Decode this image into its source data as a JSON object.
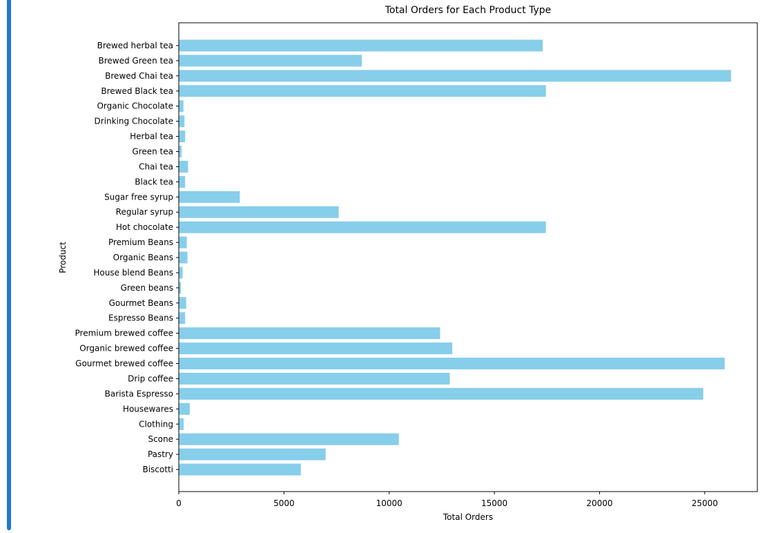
{
  "accent_color": "#1f77d4",
  "chart_data": {
    "type": "bar",
    "orientation": "horizontal",
    "title": "Total Orders for Each Product Type",
    "xlabel": "Total Orders",
    "ylabel": "Product",
    "xlim": [
      0,
      27500
    ],
    "xticks": [
      0,
      5000,
      10000,
      15000,
      20000,
      25000
    ],
    "bar_color": "#87ceeb",
    "grid": false,
    "categories": [
      "Brewed herbal tea",
      "Brewed Green tea",
      "Brewed Chai tea",
      "Brewed Black tea",
      "Organic Chocolate",
      "Drinking Chocolate",
      "Herbal tea",
      "Green tea",
      "Chai tea",
      "Black tea",
      "Sugar free syrup",
      "Regular syrup",
      "Hot chocolate",
      "Premium Beans",
      "Organic Beans",
      "House blend Beans",
      "Green beans",
      "Gourmet Beans",
      "Espresso Beans",
      "Premium brewed coffee",
      "Organic brewed coffee",
      "Gourmet brewed coffee",
      "Drip coffee",
      "Barista Espresso",
      "Housewares",
      "Clothing",
      "Scone",
      "Pastry",
      "Biscotti"
    ],
    "values": [
      17300,
      8700,
      26250,
      17450,
      220,
      270,
      300,
      130,
      440,
      300,
      2900,
      7600,
      17450,
      380,
      410,
      180,
      100,
      350,
      300,
      12420,
      13000,
      25950,
      12880,
      24930,
      520,
      230,
      10460,
      6980,
      5800
    ]
  }
}
